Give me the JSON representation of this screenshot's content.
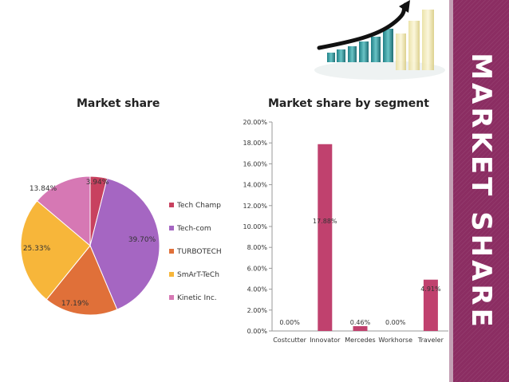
{
  "side_title": "MARKET SHARE",
  "colors": {
    "accent": "#8b2d62",
    "tech_champ": "#c8415f",
    "tech_com": "#a566c2",
    "turbotech": "#e07039",
    "smart_tech": "#f7b63a",
    "kinetic": "#d678b4",
    "bars": "#c0416e"
  },
  "chart_data": [
    {
      "type": "pie",
      "title": "Market share",
      "categories": [
        "Tech Champ",
        "Tech-com",
        "TURBOTECH",
        "SmArT-TeCh",
        "Kinetic Inc."
      ],
      "values": [
        3.94,
        39.7,
        17.19,
        25.33,
        13.84
      ],
      "value_labels": [
        "3.94%",
        "39.70%",
        "17.19%",
        "25.33%",
        "13.84%"
      ],
      "legend_position": "right"
    },
    {
      "type": "bar",
      "title": "Market share by segment",
      "categories": [
        "Costcutter",
        "Innovator",
        "Mercedes",
        "Workhorse",
        "Traveler"
      ],
      "values": [
        0.0,
        17.88,
        0.46,
        0.0,
        4.91
      ],
      "value_labels": [
        "0.00%",
        "17.88%",
        "0.46%",
        "0.00%",
        "4.91%"
      ],
      "ylim": [
        0,
        20
      ],
      "y_ticks": [
        "0.00%",
        "2.00%",
        "4.00%",
        "6.00%",
        "8.00%",
        "10.00%",
        "12.00%",
        "14.00%",
        "16.00%",
        "18.00%",
        "20.00%"
      ],
      "grid": false
    }
  ]
}
